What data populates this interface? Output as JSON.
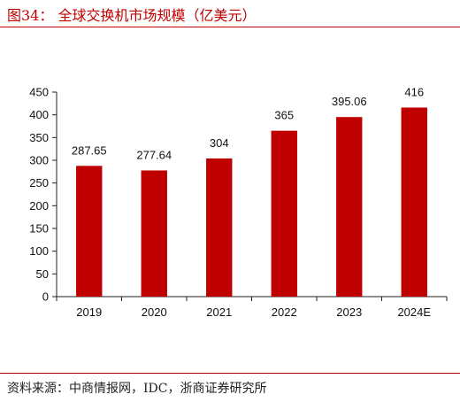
{
  "header": {
    "title": "图34：  全球交换机市场规模（亿美元）"
  },
  "footer": {
    "source": "资料来源：中商情报网，IDC，浙商证券研究所"
  },
  "chart_data": {
    "type": "bar",
    "title": "",
    "xlabel": "",
    "ylabel": "",
    "categories": [
      "2019",
      "2020",
      "2021",
      "2022",
      "2023",
      "2024E"
    ],
    "values": [
      287.65,
      277.64,
      304,
      365,
      395.06,
      416
    ],
    "value_labels": [
      "287.65",
      "277.64",
      "304",
      "365",
      "395.06",
      "416"
    ],
    "ylim": [
      0,
      450
    ],
    "yticks": [
      0,
      50,
      100,
      150,
      200,
      250,
      300,
      350,
      400,
      450
    ],
    "grid": false,
    "legend": "none",
    "bar_color": "#c00000"
  }
}
